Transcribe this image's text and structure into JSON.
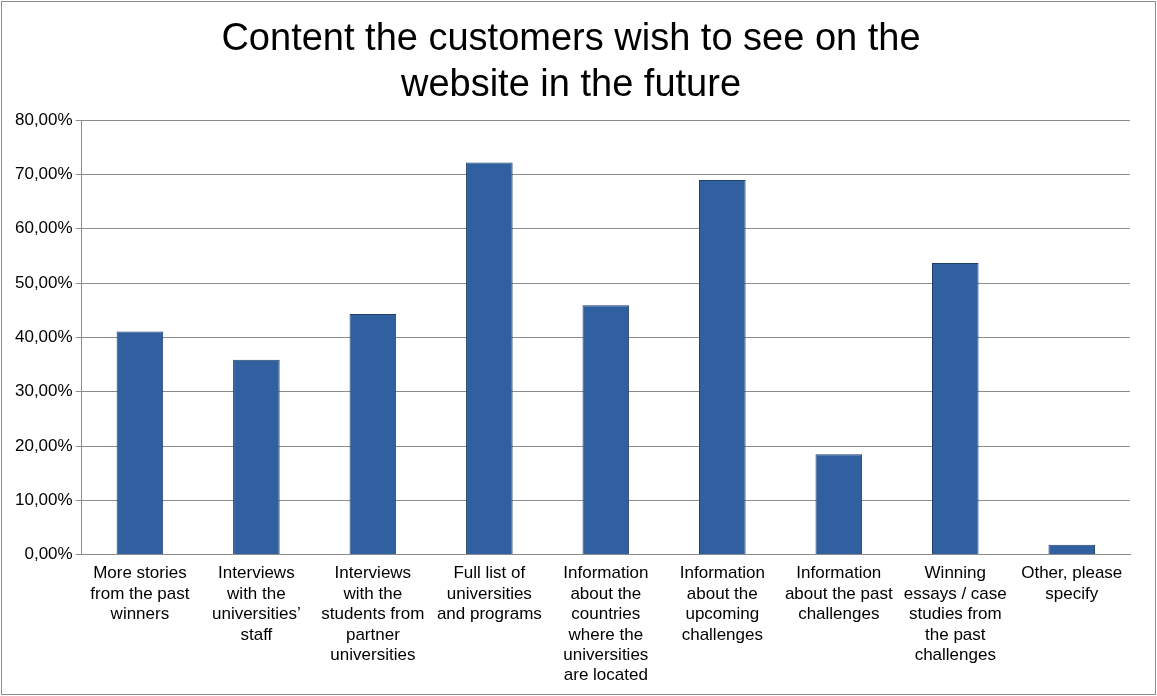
{
  "chart_data": {
    "type": "bar",
    "title": "Content the customers wish to see on the website in the future",
    "categories": [
      "More stories from the past winners",
      "Interviews with the universities’ staff",
      "Interviews with the students from partner universities",
      "Full list of universities and programs",
      "Information about the countries where the universities are located",
      "Information about the upcoming challenges",
      "Information about the past challenges",
      "Winning essays / case studies from the past challenges",
      "Other, please specify"
    ],
    "values": [
      41.1,
      35.9,
      44.3,
      72.2,
      45.9,
      69.0,
      18.5,
      53.7,
      1.8
    ],
    "color": "#30609f",
    "ylim": [
      0,
      80
    ],
    "yticks": [
      {
        "value": 0,
        "label": "0,00%"
      },
      {
        "value": 10,
        "label": "10,00%"
      },
      {
        "value": 20,
        "label": "20,00%"
      },
      {
        "value": 30,
        "label": "30,00%"
      },
      {
        "value": 40,
        "label": "40,00%"
      },
      {
        "value": 50,
        "label": "50,00%"
      },
      {
        "value": 60,
        "label": "60,00%"
      },
      {
        "value": 70,
        "label": "70,00%"
      },
      {
        "value": 80,
        "label": "80,00%"
      }
    ],
    "grid": "y",
    "legend": false
  }
}
